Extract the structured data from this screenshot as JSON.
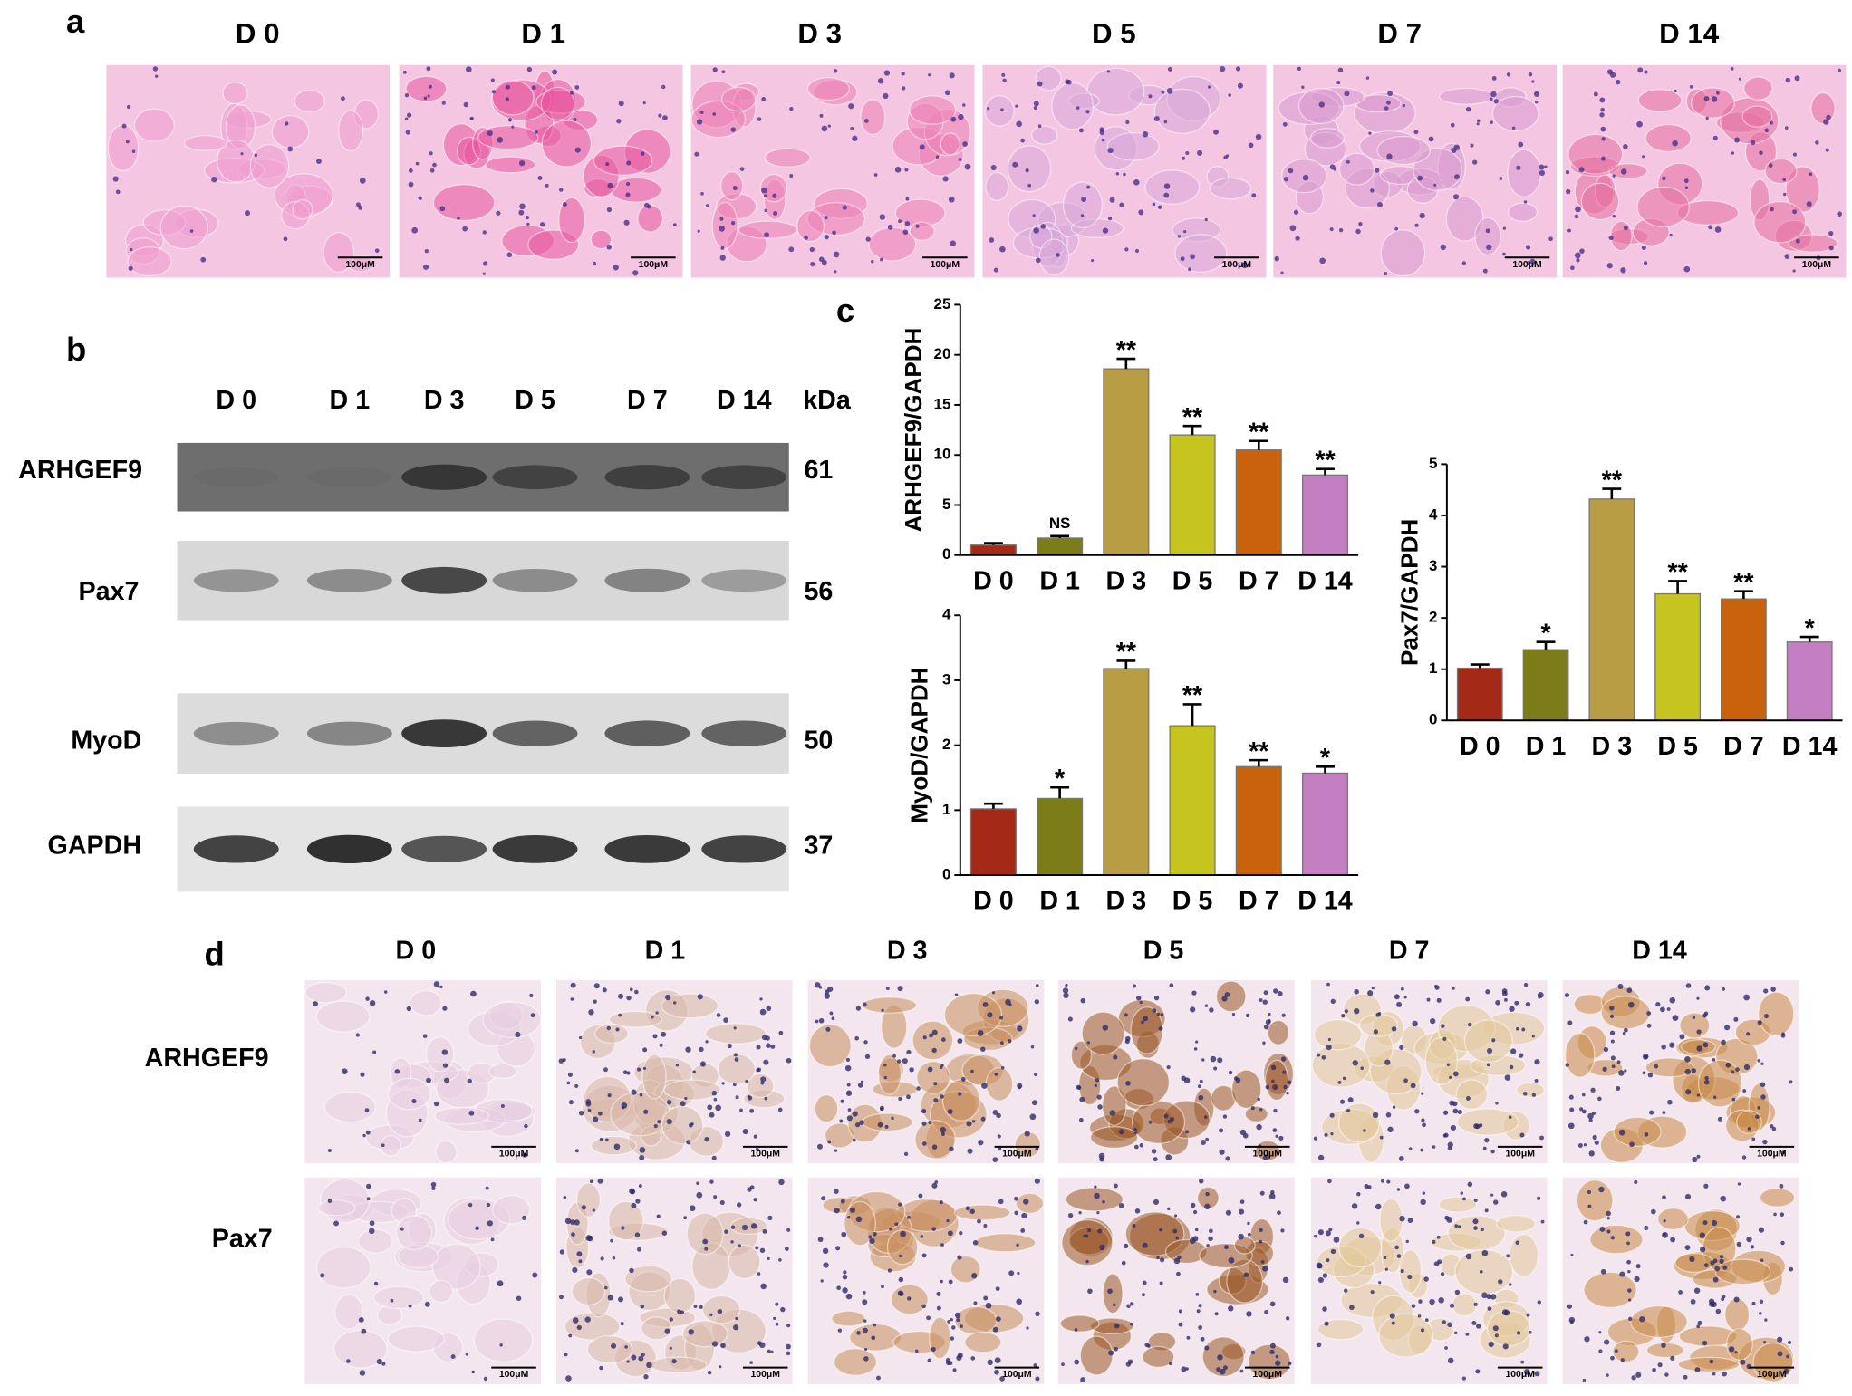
{
  "panel_a": {
    "label": "a",
    "columns": [
      "D 0",
      "D 1",
      "D 3",
      "D 5",
      "D 7",
      "D 14"
    ],
    "scale_bar": "100μM"
  },
  "panel_b": {
    "label": "b",
    "columns": [
      "D 0",
      "D 1",
      "D 3",
      "D 5",
      "D 7",
      "D 14"
    ],
    "unit_header": "kDa",
    "rows": [
      {
        "name": "ARHGEF9",
        "kda": 61
      },
      {
        "name": "Pax7",
        "kda": 56
      },
      {
        "name": "MyoD",
        "kda": 50
      },
      {
        "name": "GAPDH",
        "kda": 37
      }
    ]
  },
  "panel_c": {
    "label": "c"
  },
  "chart_data": [
    {
      "type": "bar",
      "ylabel": "ARHGEF9/GAPDH",
      "categories": [
        "D 0",
        "D 1",
        "D 3",
        "D 5",
        "D 7",
        "D 14"
      ],
      "values": [
        1.0,
        1.7,
        18.6,
        12.0,
        10.5,
        8.0
      ],
      "errors": [
        0.2,
        0.2,
        1.0,
        0.9,
        0.9,
        0.6
      ],
      "annotations": [
        null,
        "NS",
        "**",
        "**",
        "**",
        "**"
      ],
      "colors": [
        "#a42a17",
        "#7c7c18",
        "#b99d45",
        "#c6c41e",
        "#c9620c",
        "#c47fc2"
      ],
      "ylim": [
        0,
        25
      ],
      "yticks": [
        0,
        5,
        10,
        15,
        20,
        25
      ]
    },
    {
      "type": "bar",
      "ylabel": "Pax7/GAPDH",
      "categories": [
        "D 0",
        "D 1",
        "D 3",
        "D 5",
        "D 7",
        "D 14"
      ],
      "values": [
        1.02,
        1.38,
        4.32,
        2.47,
        2.37,
        1.53
      ],
      "errors": [
        0.07,
        0.15,
        0.2,
        0.25,
        0.15,
        0.1
      ],
      "annotations": [
        null,
        "*",
        "**",
        "**",
        "**",
        "*"
      ],
      "colors": [
        "#a42a17",
        "#7c7c18",
        "#b99d45",
        "#c6c41e",
        "#c9620c",
        "#c47fc2"
      ],
      "ylim": [
        0,
        5
      ],
      "yticks": [
        0,
        1,
        2,
        3,
        4,
        5
      ]
    },
    {
      "type": "bar",
      "ylabel": "MyoD/GAPDH",
      "categories": [
        "D 0",
        "D 1",
        "D 3",
        "D 5",
        "D 7",
        "D 14"
      ],
      "values": [
        1.02,
        1.18,
        3.18,
        2.3,
        1.67,
        1.57
      ],
      "errors": [
        0.08,
        0.17,
        0.12,
        0.33,
        0.1,
        0.1
      ],
      "annotations": [
        null,
        "*",
        "**",
        "**",
        "**",
        "*"
      ],
      "colors": [
        "#a42a17",
        "#7c7c18",
        "#b99d45",
        "#c6c41e",
        "#c9620c",
        "#c47fc2"
      ],
      "ylim": [
        0,
        4
      ],
      "yticks": [
        0,
        1,
        2,
        3,
        4
      ]
    }
  ],
  "panel_d": {
    "label": "d",
    "columns": [
      "D 0",
      "D 1",
      "D 3",
      "D 5",
      "D 7",
      "D 14"
    ],
    "rows": [
      "ARHGEF9",
      "Pax7"
    ],
    "scale_bar": "100μM"
  }
}
